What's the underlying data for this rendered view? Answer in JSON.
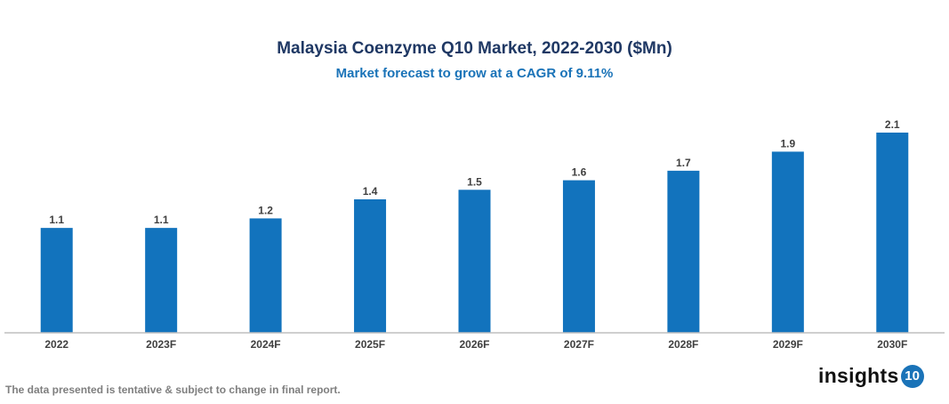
{
  "chart_data": {
    "type": "bar",
    "title": "Malaysia Coenzyme Q10 Market, 2022-2030 ($Mn)",
    "subtitle": "Market forecast to grow at a CAGR of 9.11%",
    "categories": [
      "2022",
      "2023F",
      "2024F",
      "2025F",
      "2026F",
      "2027F",
      "2028F",
      "2029F",
      "2030F"
    ],
    "values": [
      1.1,
      1.1,
      1.2,
      1.4,
      1.5,
      1.6,
      1.7,
      1.9,
      2.1
    ],
    "xlabel": "",
    "ylabel": "",
    "ylim": [
      0,
      2.1
    ],
    "grid": false,
    "bar_color": "#1273bd"
  },
  "footnote": "The data presented is tentative & subject to change in final report.",
  "logo": {
    "text": "insights",
    "badge": "10"
  }
}
